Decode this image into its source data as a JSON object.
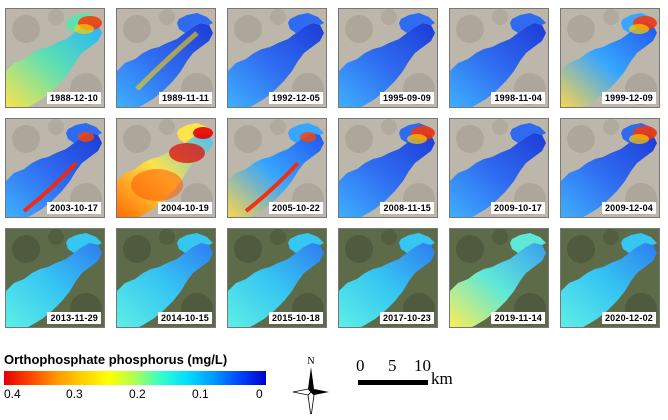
{
  "panels": [
    {
      "date": "1988-12-10",
      "style": "green",
      "hot": "ne"
    },
    {
      "date": "1989-11-11",
      "style": "blue",
      "hot": "mid"
    },
    {
      "date": "1992-12-05",
      "style": "blue",
      "hot": "none"
    },
    {
      "date": "1995-09-09",
      "style": "blue",
      "hot": "none"
    },
    {
      "date": "1998-11-04",
      "style": "blue",
      "hot": "none"
    },
    {
      "date": "1999-12-09",
      "style": "mixed",
      "hot": "ne"
    },
    {
      "date": "2003-10-17",
      "style": "blue",
      "hot": "shore"
    },
    {
      "date": "2004-10-19",
      "style": "red",
      "hot": "all"
    },
    {
      "date": "2005-10-22",
      "style": "mixed",
      "hot": "shore"
    },
    {
      "date": "2008-11-15",
      "style": "blue",
      "hot": "ne"
    },
    {
      "date": "2009-10-17",
      "style": "blue",
      "hot": "none"
    },
    {
      "date": "2009-12-04",
      "style": "blue",
      "hot": "ne"
    },
    {
      "date": "2013-11-29",
      "style": "cyan",
      "hot": "none"
    },
    {
      "date": "2014-10-15",
      "style": "cyan",
      "hot": "none"
    },
    {
      "date": "2015-10-18",
      "style": "cyan",
      "hot": "none"
    },
    {
      "date": "2017-10-23",
      "style": "cyan",
      "hot": "none"
    },
    {
      "date": "2019-11-14",
      "style": "yellow",
      "hot": "none"
    },
    {
      "date": "2020-12-02",
      "style": "cyan",
      "hot": "none"
    }
  ],
  "legend": {
    "title": "Orthophosphate phosphorus (mg/L)",
    "labels": [
      "0.4",
      "0.3",
      "0.2",
      "0.1",
      "0"
    ],
    "colors": [
      "#e60000",
      "#ffd000",
      "#33ffcc",
      "#0099ff",
      "#0000cc"
    ]
  },
  "north": {
    "letter": "N"
  },
  "scale": {
    "ticks": [
      "0",
      "5",
      "10"
    ],
    "unit": "km"
  }
}
